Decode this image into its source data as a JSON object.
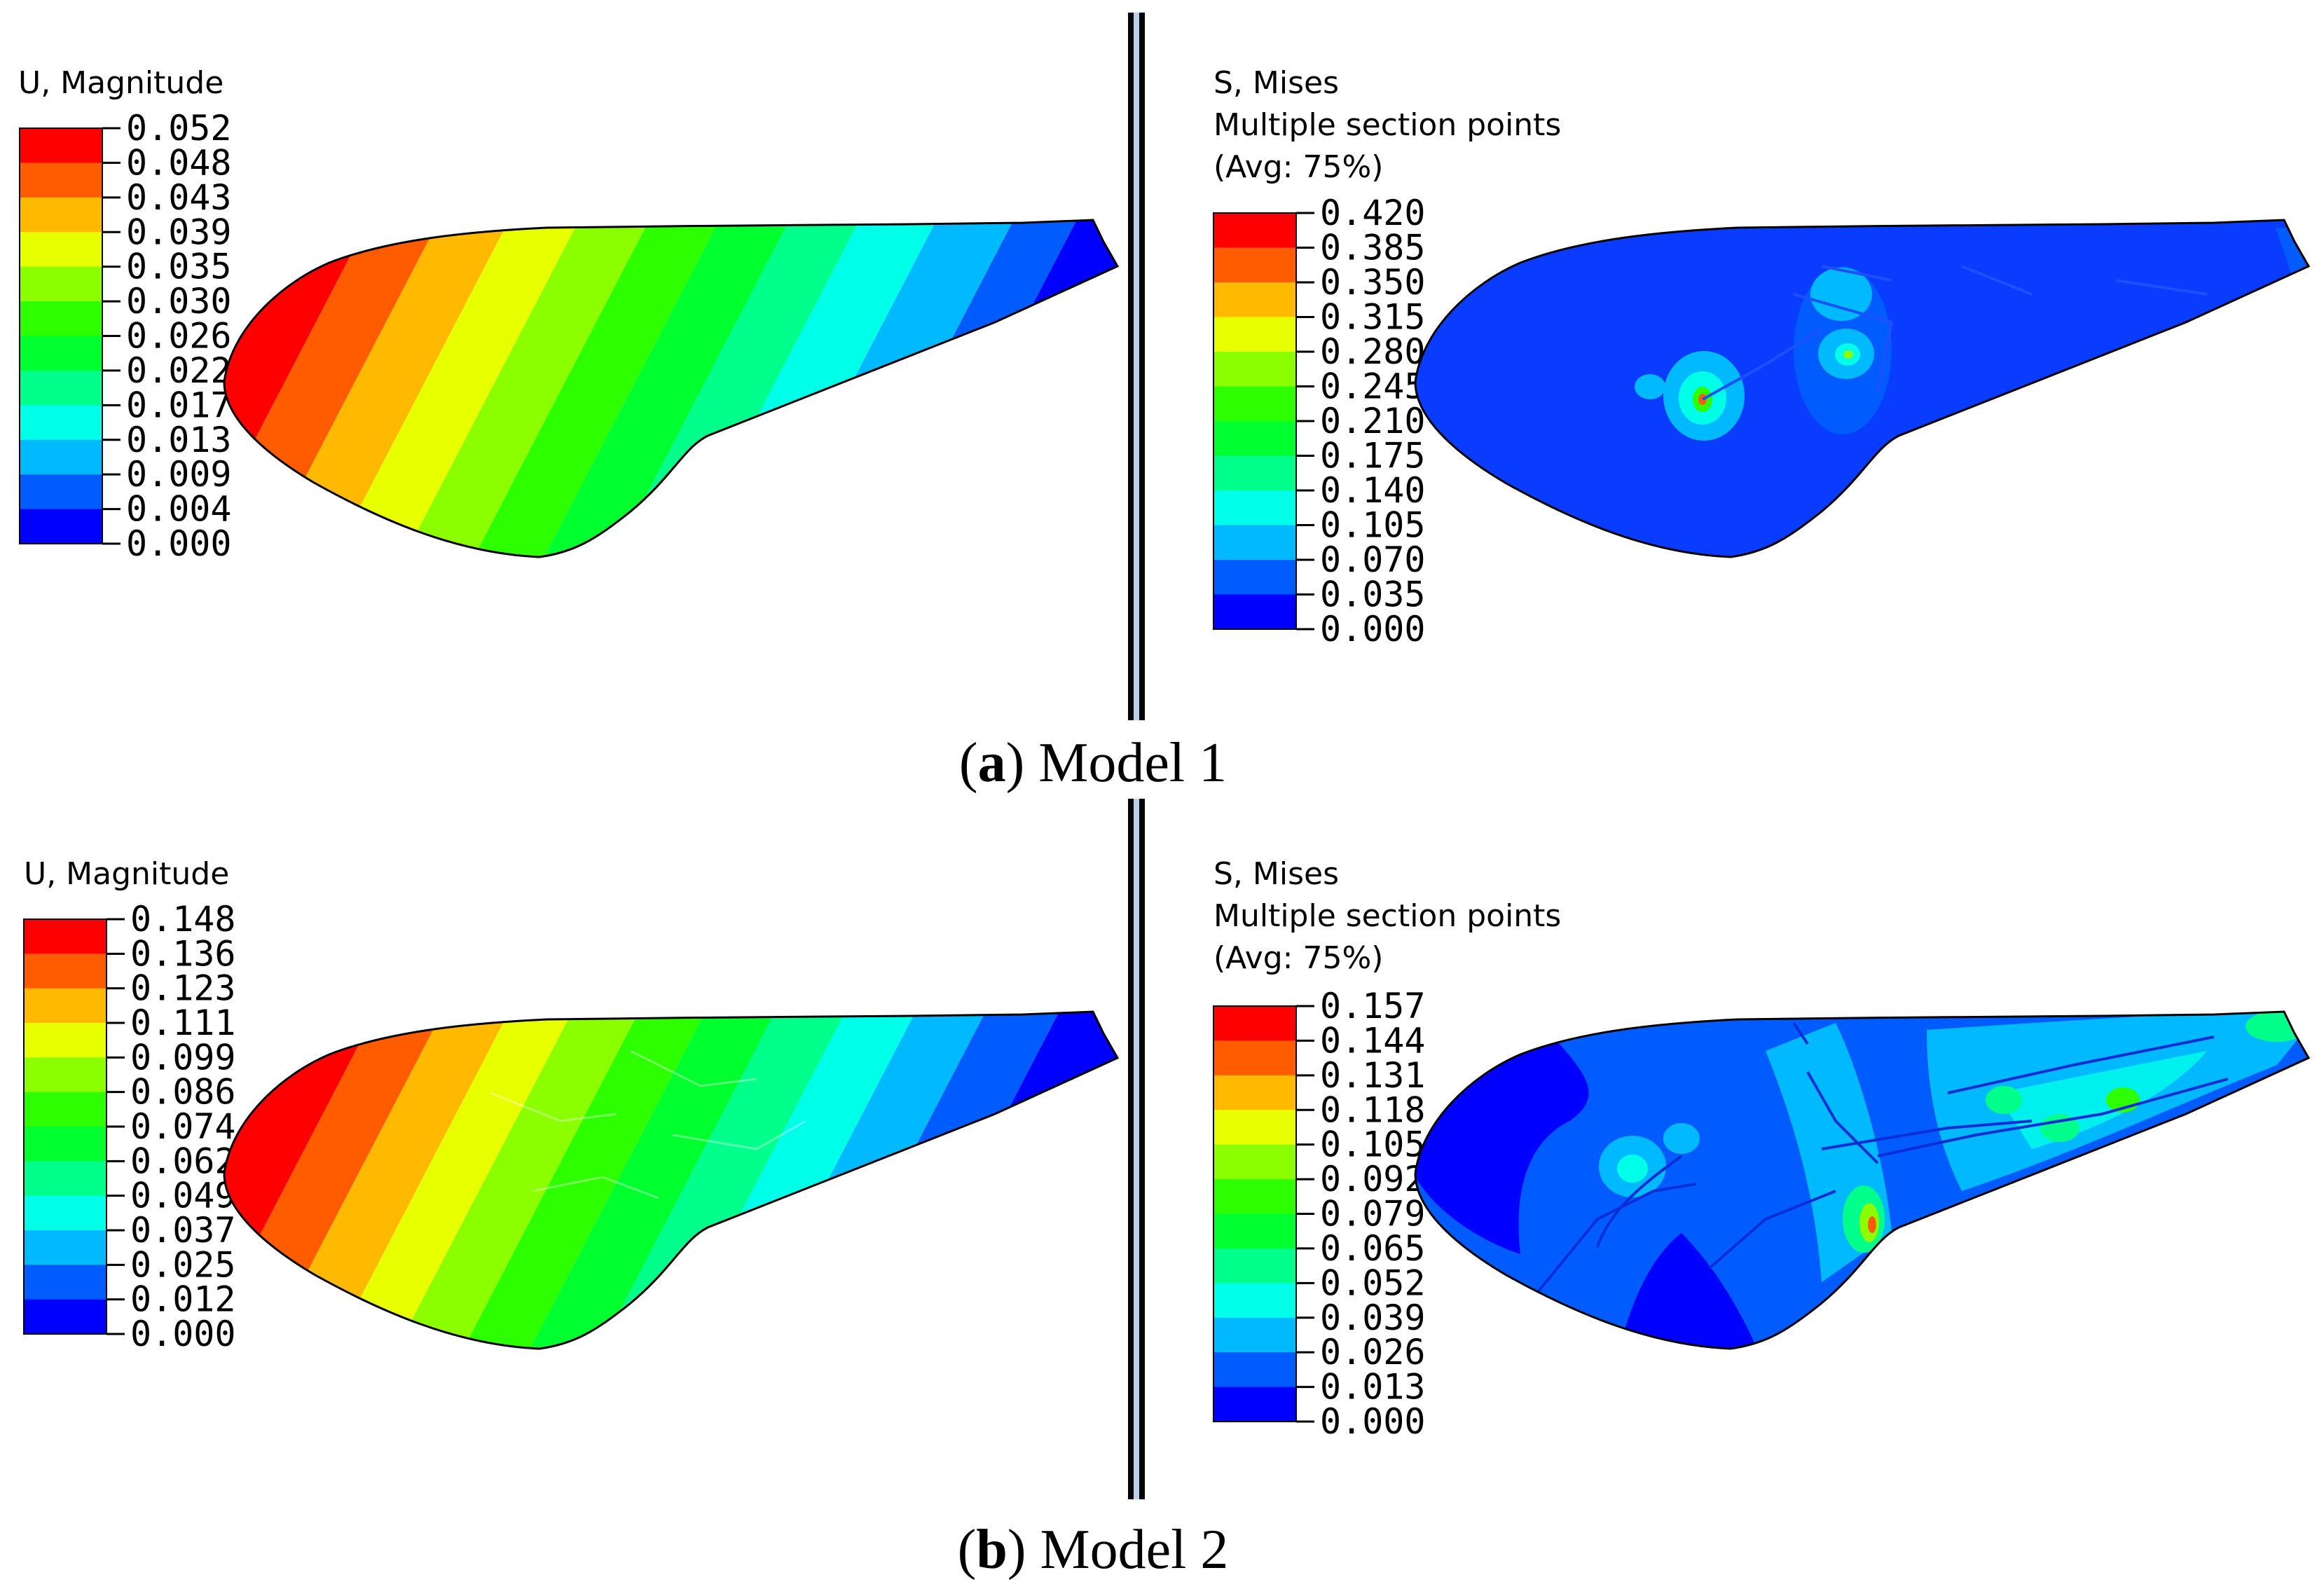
{
  "figure": {
    "palette": [
      "#0000ff",
      "#005cff",
      "#00b9ff",
      "#00ffe8",
      "#00ff8b",
      "#00ff2e",
      "#2eff00",
      "#8bff00",
      "#e8ff00",
      "#ffb900",
      "#ff5c00",
      "#ff0000"
    ],
    "panel_a": {
      "caption_letter": "a",
      "caption_text": "Model 1",
      "left": {
        "title_lines": [
          "U, Magnitude"
        ],
        "ticks": [
          "0.052",
          "0.048",
          "0.043",
          "0.039",
          "0.035",
          "0.030",
          "0.026",
          "0.022",
          "0.017",
          "0.013",
          "0.009",
          "0.004",
          "0.000"
        ]
      },
      "right": {
        "title_lines": [
          "S, Mises",
          "Multiple section points",
          "(Avg: 75%)"
        ],
        "ticks": [
          "0.420",
          "0.385",
          "0.350",
          "0.315",
          "0.280",
          "0.245",
          "0.210",
          "0.175",
          "0.140",
          "0.105",
          "0.070",
          "0.035",
          "0.000"
        ]
      }
    },
    "panel_b": {
      "caption_letter": "b",
      "caption_text": "Model 2",
      "left": {
        "title_lines": [
          "U, Magnitude"
        ],
        "ticks": [
          "0.148",
          "0.136",
          "0.123",
          "0.111",
          "0.099",
          "0.086",
          "0.074",
          "0.062",
          "0.049",
          "0.037",
          "0.025",
          "0.012",
          "0.000"
        ]
      },
      "right": {
        "title_lines": [
          "S, Mises",
          "Multiple section points",
          "(Avg: 75%)"
        ],
        "ticks": [
          "0.157",
          "0.144",
          "0.131",
          "0.118",
          "0.105",
          "0.092",
          "0.079",
          "0.065",
          "0.052",
          "0.039",
          "0.026",
          "0.013",
          "0.000"
        ]
      }
    }
  }
}
